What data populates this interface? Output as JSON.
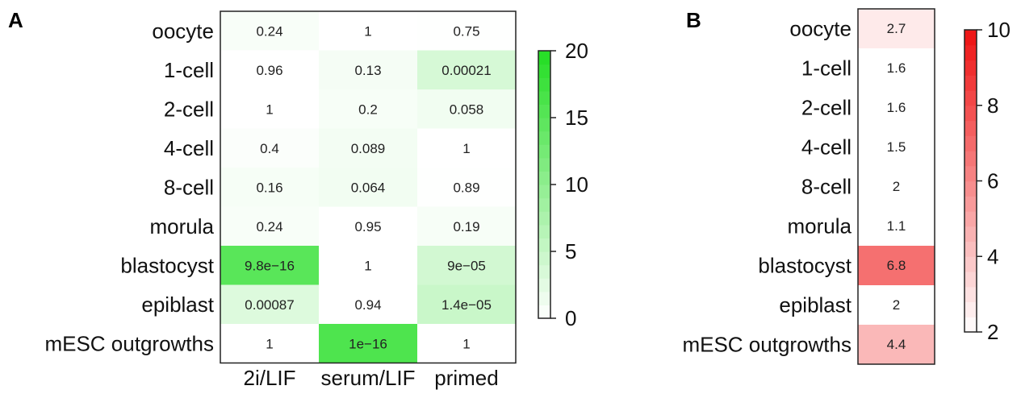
{
  "chart_data": [
    {
      "type": "heatmap",
      "panel": "A",
      "rows": [
        "oocyte",
        "1-cell",
        "2-cell",
        "4-cell",
        "8-cell",
        "morula",
        "blastocyst",
        "epiblast",
        "mESC outgrowths"
      ],
      "columns": [
        "2i/LIF",
        "serum/LIF",
        "primed"
      ],
      "cell_labels": [
        [
          "0.24",
          "1",
          "0.75"
        ],
        [
          "0.96",
          "0.13",
          "0.00021"
        ],
        [
          "1",
          "0.2",
          "0.058"
        ],
        [
          "0.4",
          "0.089",
          "1"
        ],
        [
          "0.16",
          "0.064",
          "0.89"
        ],
        [
          "0.24",
          "0.95",
          "0.19"
        ],
        [
          "9.8e−16",
          "1",
          "9e−05"
        ],
        [
          "0.00087",
          "0.94",
          "1.4e−05"
        ],
        [
          "1",
          "1e−16",
          "1"
        ]
      ],
      "values": [
        [
          0.62,
          0,
          0.12
        ],
        [
          0.02,
          0.89,
          3.68
        ],
        [
          0,
          0.7,
          1.24
        ],
        [
          0.4,
          1.05,
          0
        ],
        [
          0.8,
          1.19,
          0.05
        ],
        [
          0.62,
          0.02,
          0.72
        ],
        [
          15.0,
          0,
          4.05
        ],
        [
          3.06,
          0.03,
          4.85
        ],
        [
          0,
          16.0,
          0
        ]
      ],
      "color_range": [
        0,
        20
      ],
      "colorbar_ticks": [
        "0",
        "5",
        "10",
        "15",
        "20"
      ],
      "color_low": "#ffffff",
      "color_high": "#22dd22"
    },
    {
      "type": "heatmap",
      "panel": "B",
      "rows": [
        "oocyte",
        "1-cell",
        "2-cell",
        "4-cell",
        "8-cell",
        "morula",
        "blastocyst",
        "epiblast",
        "mESC outgrowths"
      ],
      "columns": [],
      "cell_labels": [
        [
          "2.7"
        ],
        [
          "1.6"
        ],
        [
          "1.6"
        ],
        [
          "1.5"
        ],
        [
          "2"
        ],
        [
          "1.1"
        ],
        [
          "6.8"
        ],
        [
          "2"
        ],
        [
          "4.4"
        ]
      ],
      "values": [
        [
          2.7
        ],
        [
          1.6
        ],
        [
          1.6
        ],
        [
          1.5
        ],
        [
          2
        ],
        [
          1.1
        ],
        [
          6.8
        ],
        [
          2
        ],
        [
          4.4
        ]
      ],
      "color_range": [
        2,
        10
      ],
      "colorbar_ticks": [
        "2",
        "4",
        "6",
        "8",
        "10"
      ],
      "color_low": "#ffffff",
      "color_high": "#ee1111"
    }
  ]
}
